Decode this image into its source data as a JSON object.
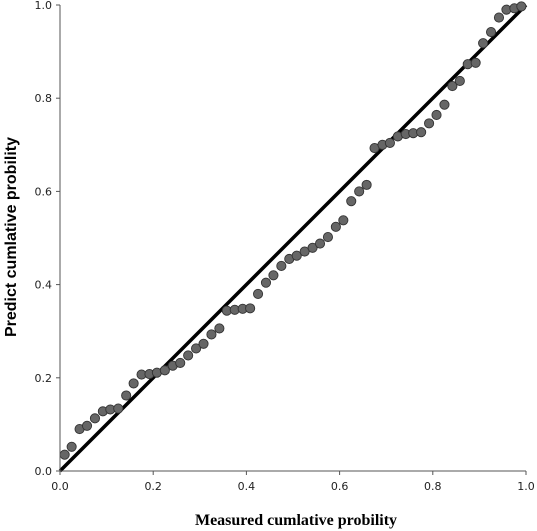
{
  "chart_data": {
    "type": "scatter",
    "xlabel": "Measured cumlative probility",
    "ylabel": "Predict cumlative probility",
    "xlim": [
      0,
      1
    ],
    "ylim": [
      0,
      1
    ],
    "xticks": [
      "0.0",
      "0.2",
      "0.4",
      "0.6",
      "0.8",
      "1.0"
    ],
    "yticks": [
      "0.0",
      "0.2",
      "0.4",
      "0.6",
      "0.8",
      "1.0"
    ],
    "grid": false,
    "reference_line": {
      "from": [
        0,
        0
      ],
      "to": [
        1,
        1
      ],
      "color": "#000000"
    },
    "series": [
      {
        "marker_color": "#666666",
        "points": [
          [
            0.01,
            0.035
          ],
          [
            0.025,
            0.052
          ],
          [
            0.042,
            0.09
          ],
          [
            0.058,
            0.097
          ],
          [
            0.075,
            0.113
          ],
          [
            0.092,
            0.128
          ],
          [
            0.108,
            0.132
          ],
          [
            0.125,
            0.134
          ],
          [
            0.142,
            0.162
          ],
          [
            0.158,
            0.188
          ],
          [
            0.175,
            0.207
          ],
          [
            0.192,
            0.208
          ],
          [
            0.208,
            0.211
          ],
          [
            0.225,
            0.216
          ],
          [
            0.242,
            0.226
          ],
          [
            0.258,
            0.232
          ],
          [
            0.275,
            0.248
          ],
          [
            0.292,
            0.263
          ],
          [
            0.308,
            0.273
          ],
          [
            0.325,
            0.293
          ],
          [
            0.342,
            0.306
          ],
          [
            0.358,
            0.344
          ],
          [
            0.375,
            0.346
          ],
          [
            0.392,
            0.348
          ],
          [
            0.408,
            0.349
          ],
          [
            0.425,
            0.38
          ],
          [
            0.442,
            0.404
          ],
          [
            0.458,
            0.42
          ],
          [
            0.475,
            0.44
          ],
          [
            0.492,
            0.455
          ],
          [
            0.508,
            0.462
          ],
          [
            0.525,
            0.471
          ],
          [
            0.542,
            0.479
          ],
          [
            0.558,
            0.488
          ],
          [
            0.575,
            0.502
          ],
          [
            0.592,
            0.524
          ],
          [
            0.608,
            0.538
          ],
          [
            0.625,
            0.579
          ],
          [
            0.642,
            0.6
          ],
          [
            0.658,
            0.614
          ],
          [
            0.675,
            0.693
          ],
          [
            0.692,
            0.7
          ],
          [
            0.708,
            0.704
          ],
          [
            0.725,
            0.718
          ],
          [
            0.742,
            0.723
          ],
          [
            0.758,
            0.725
          ],
          [
            0.775,
            0.727
          ],
          [
            0.792,
            0.746
          ],
          [
            0.808,
            0.764
          ],
          [
            0.825,
            0.786
          ],
          [
            0.842,
            0.826
          ],
          [
            0.858,
            0.837
          ],
          [
            0.875,
            0.873
          ],
          [
            0.892,
            0.876
          ],
          [
            0.908,
            0.918
          ],
          [
            0.925,
            0.942
          ],
          [
            0.942,
            0.973
          ],
          [
            0.958,
            0.99
          ],
          [
            0.975,
            0.993
          ],
          [
            0.99,
            0.997
          ]
        ]
      }
    ]
  }
}
